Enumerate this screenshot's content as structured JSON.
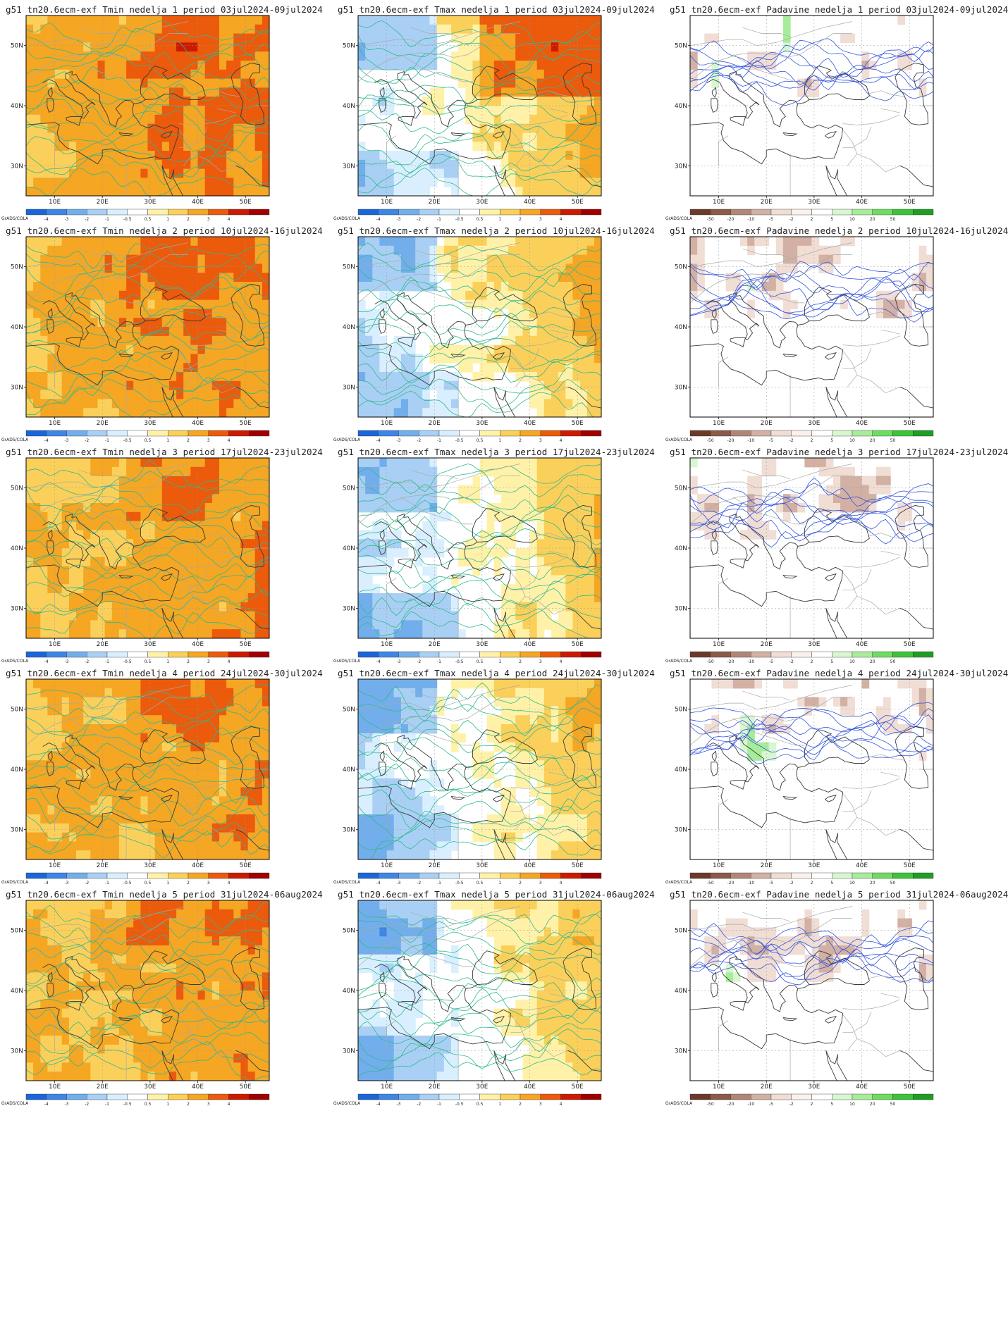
{
  "figure": {
    "credit": "GrADS/COLA",
    "lon_ticks": [
      "10E",
      "20E",
      "30E",
      "40E",
      "50E"
    ],
    "lat_ticks": [
      "50N",
      "40N",
      "30N"
    ]
  },
  "legends": {
    "temperature": {
      "labels": [
        "-4",
        "-3",
        "-2",
        "-1",
        "-0.5",
        "0.5",
        "1",
        "2",
        "3",
        "4"
      ],
      "colors": [
        "#1a66d9",
        "#3d86e6",
        "#72aeeb",
        "#a9d0f4",
        "#d9efff",
        "#ffffff",
        "#fff2a8",
        "#fbd05a",
        "#f5a623",
        "#ec5a0c",
        "#cc1a00",
        "#a00000"
      ]
    },
    "precipitation": {
      "labels": [
        "-50",
        "-20",
        "-10",
        "-5",
        "-2",
        "2",
        "5",
        "10",
        "20",
        "50"
      ],
      "colors": [
        "#6b3a2a",
        "#8c5a48",
        "#b08676",
        "#d2b0a3",
        "#f0ddd4",
        "#fbf1ec",
        "#ffffff",
        "#d8f7d0",
        "#a7ec9a",
        "#6fdc60",
        "#3cc33a",
        "#1e9e22"
      ]
    }
  },
  "panels": [
    {
      "title": "g51  tn20.6ecm-exf Tmin nedelja 1 period 03jul2024-09jul2024",
      "var": "Tmin",
      "week": 1,
      "legend": "temperature"
    },
    {
      "title": "g51  tn20.6ecm-exf Tmax nedelja 1 period 03jul2024-09jul2024",
      "var": "Tmax",
      "week": 1,
      "legend": "temperature"
    },
    {
      "title": "g51  tn20.6ecm-exf Padavine nedelja 1 period 03jul2024-09jul2024",
      "var": "Padavine",
      "week": 1,
      "legend": "precipitation"
    },
    {
      "title": "g51  tn20.6ecm-exf Tmin nedelja 2 period 10jul2024-16jul2024",
      "var": "Tmin",
      "week": 2,
      "legend": "temperature"
    },
    {
      "title": "g51  tn20.6ecm-exf Tmax nedelja 2 period 10jul2024-16jul2024",
      "var": "Tmax",
      "week": 2,
      "legend": "temperature"
    },
    {
      "title": "g51  tn20.6ecm-exf Padavine nedelja 2 period 10jul2024-16jul2024",
      "var": "Padavine",
      "week": 2,
      "legend": "precipitation"
    },
    {
      "title": "g51  tn20.6ecm-exf Tmin nedelja 3 period 17jul2024-23jul2024",
      "var": "Tmin",
      "week": 3,
      "legend": "temperature"
    },
    {
      "title": "g51  tn20.6ecm-exf Tmax nedelja 3 period 17jul2024-23jul2024",
      "var": "Tmax",
      "week": 3,
      "legend": "temperature"
    },
    {
      "title": "g51  tn20.6ecm-exf Padavine nedelja 3 period 17jul2024-23jul2024",
      "var": "Padavine",
      "week": 3,
      "legend": "precipitation"
    },
    {
      "title": "g51  tn20.6ecm-exf Tmin nedelja 4 period 24jul2024-30jul2024",
      "var": "Tmin",
      "week": 4,
      "legend": "temperature"
    },
    {
      "title": "g51  tn20.6ecm-exf Tmax nedelja 4 period 24jul2024-30jul2024",
      "var": "Tmax",
      "week": 4,
      "legend": "temperature"
    },
    {
      "title": "g51  tn20.6ecm-exf Padavine nedelja 4 period 24jul2024-30jul2024",
      "var": "Padavine",
      "week": 4,
      "legend": "precipitation"
    },
    {
      "title": "g51  tn20.6ecm-exf Tmin nedelja 5 period 31jul2024-06aug2024",
      "var": "Tmin",
      "week": 5,
      "legend": "temperature"
    },
    {
      "title": "g51  tn20.6ecm-exf Tmax nedelja 5 period 31jul2024-06aug2024",
      "var": "Tmax",
      "week": 5,
      "legend": "temperature"
    },
    {
      "title": "g51  tn20.6ecm-exf Padavine nedelja 5 period 31jul2024-06aug2024",
      "var": "Padavine",
      "week": 5,
      "legend": "precipitation"
    }
  ]
}
